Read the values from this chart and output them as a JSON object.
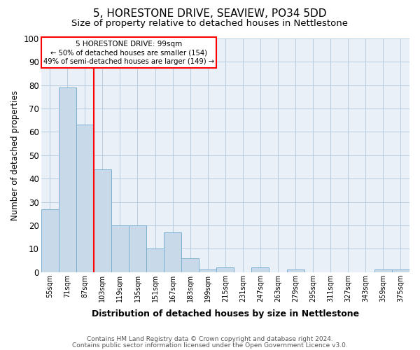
{
  "title": "5, HORESTONE DRIVE, SEAVIEW, PO34 5DD",
  "subtitle": "Size of property relative to detached houses in Nettlestone",
  "xlabel": "Distribution of detached houses by size in Nettlestone",
  "ylabel": "Number of detached properties",
  "categories": [
    "55sqm",
    "71sqm",
    "87sqm",
    "103sqm",
    "119sqm",
    "135sqm",
    "151sqm",
    "167sqm",
    "183sqm",
    "199sqm",
    "215sqm",
    "231sqm",
    "247sqm",
    "263sqm",
    "279sqm",
    "295sqm",
    "311sqm",
    "327sqm",
    "343sqm",
    "359sqm",
    "375sqm"
  ],
  "values": [
    27,
    79,
    63,
    44,
    20,
    20,
    10,
    17,
    6,
    1,
    2,
    0,
    2,
    0,
    1,
    0,
    0,
    0,
    0,
    1,
    1
  ],
  "bar_color": "#c8d9ea",
  "bar_edge_color": "#7aaed0",
  "red_line_index": 2.5,
  "property_label": "5 HORESTONE DRIVE: 99sqm",
  "annotation_line1": "← 50% of detached houses are smaller (154)",
  "annotation_line2": "49% of semi-detached houses are larger (149) →",
  "ylim": [
    0,
    100
  ],
  "yticks": [
    0,
    10,
    20,
    30,
    40,
    50,
    60,
    70,
    80,
    90,
    100
  ],
  "footer1": "Contains HM Land Registry data © Crown copyright and database right 2024.",
  "footer2": "Contains public sector information licensed under the Open Government Licence v3.0.",
  "bg_color": "#ffffff",
  "plot_bg_color": "#eaf0f8",
  "grid_color": "#b8cce0",
  "title_fontsize": 11,
  "subtitle_fontsize": 9.5
}
